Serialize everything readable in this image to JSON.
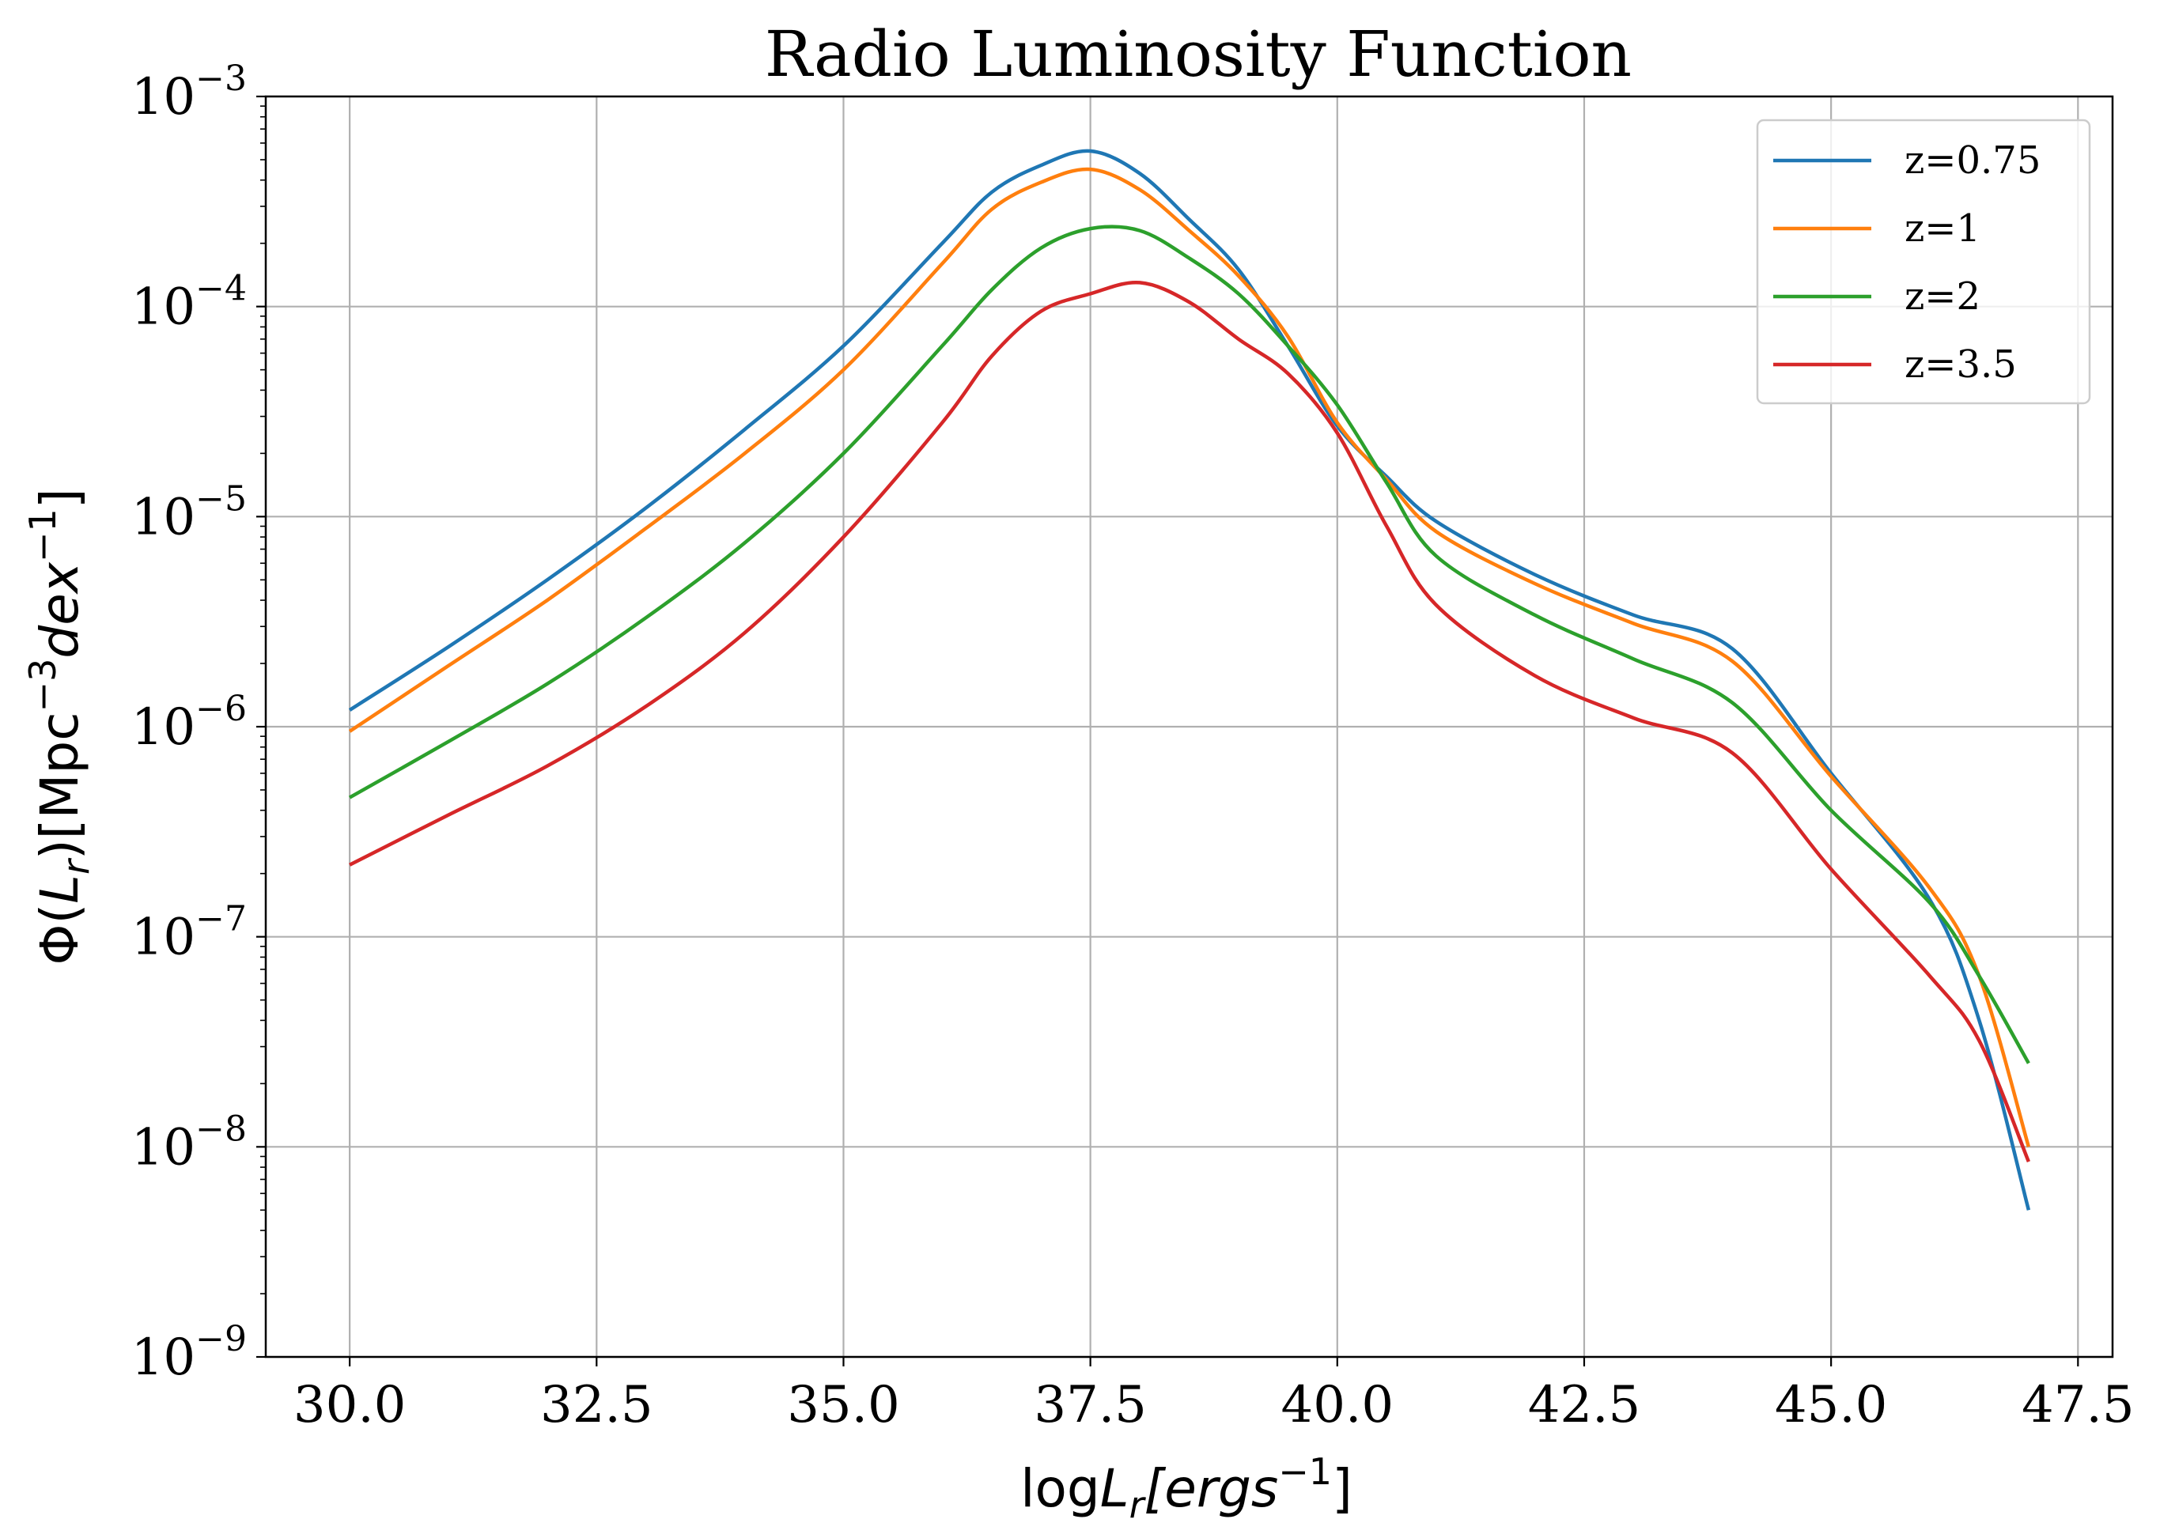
{
  "chart_data": {
    "type": "line",
    "title": "Radio Luminosity Function",
    "xlabel": {
      "prefix": "log",
      "var": "L",
      "sub": "r",
      "unit": "[ergs",
      "exp": "−1",
      "close": "]"
    },
    "ylabel": {
      "phi": "Φ(",
      "var": "L",
      "sub": "r",
      "mid": ")[Mpc",
      "exp1": "−3",
      "dex": "dex",
      "exp2": "−1",
      "close": "]"
    },
    "xlim": [
      29.15,
      47.85
    ],
    "ylim_log10": [
      -9,
      -3
    ],
    "y_scale": "log",
    "grid": true,
    "legend_position": "top-right",
    "x_ticks": [
      30.0,
      32.5,
      35.0,
      37.5,
      40.0,
      42.5,
      45.0,
      47.5
    ],
    "x_tick_labels": [
      "30.0",
      "32.5",
      "35.0",
      "37.5",
      "40.0",
      "42.5",
      "45.0",
      "47.5"
    ],
    "y_ticks": [
      {
        "value": 1e-09,
        "base": "10",
        "exp": "−9"
      },
      {
        "value": 1e-08,
        "base": "10",
        "exp": "−8"
      },
      {
        "value": 1e-07,
        "base": "10",
        "exp": "−7"
      },
      {
        "value": 1e-06,
        "base": "10",
        "exp": "−6"
      },
      {
        "value": 1e-05,
        "base": "10",
        "exp": "−5"
      },
      {
        "value": 0.0001,
        "base": "10",
        "exp": "−4"
      },
      {
        "value": 0.001,
        "base": "10",
        "exp": "−3"
      }
    ],
    "x": [
      30,
      31,
      32,
      33,
      34,
      35,
      36,
      36.5,
      37,
      37.5,
      38,
      38.5,
      39,
      39.5,
      40,
      40.5,
      41,
      42,
      43,
      44,
      45,
      46,
      46.5,
      47
    ],
    "series": [
      {
        "name": "z=0.75",
        "color": "#1f77b4",
        "values": [
          1.2e-06,
          2.4e-06,
          5e-06,
          1.1e-05,
          2.6e-05,
          6.5e-05,
          0.0002,
          0.00035,
          0.00047,
          0.00055,
          0.00043,
          0.00026,
          0.00015,
          6.5e-05,
          2.7e-05,
          1.55e-05,
          9.5e-06,
          5.3e-06,
          3.4e-06,
          2.35e-06,
          6e-07,
          1.5e-07,
          4e-08,
          5e-09
        ]
      },
      {
        "name": "z=1",
        "color": "#ff7f0e",
        "values": [
          9.5e-07,
          1.95e-06,
          4e-06,
          8.8e-06,
          2e-05,
          5e-05,
          0.00016,
          0.00029,
          0.00039,
          0.00045,
          0.00036,
          0.00023,
          0.00014,
          7.2e-05,
          2.8e-05,
          1.5e-05,
          8.5e-06,
          4.8e-06,
          3.1e-06,
          2.05e-06,
          5.8e-07,
          1.7e-07,
          6.5e-08,
          1e-08
        ]
      },
      {
        "name": "z=2",
        "color": "#2ca02c",
        "values": [
          4.6e-07,
          8.5e-07,
          1.6e-06,
          3.3e-06,
          7.5e-06,
          2e-05,
          6.5e-05,
          0.00012,
          0.00019,
          0.000235,
          0.00023,
          0.00017,
          0.000115,
          6.5e-05,
          3.4e-05,
          1.45e-05,
          6.5e-06,
          3.4e-06,
          2.1e-06,
          1.3e-06,
          4e-07,
          1.45e-07,
          6.5e-08,
          2.5e-08
        ]
      },
      {
        "name": "z=3.5",
        "color": "#d62728",
        "values": [
          2.2e-07,
          3.8e-07,
          6.5e-07,
          1.25e-06,
          2.8e-06,
          8e-06,
          2.8e-05,
          5.8e-05,
          9.5e-05,
          0.000115,
          0.00013,
          0.000105,
          7e-05,
          4.8e-05,
          2.5e-05,
          9e-06,
          3.8e-06,
          1.75e-06,
          1.1e-06,
          7.5e-07,
          2.1e-07,
          6.5e-08,
          3.2e-08,
          8.5e-09
        ]
      }
    ]
  }
}
